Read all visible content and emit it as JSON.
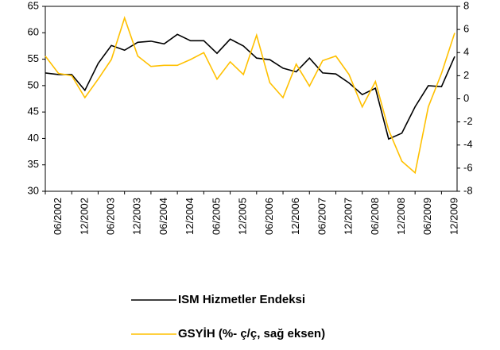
{
  "chart_data": {
    "type": "line",
    "categories": [
      null,
      "06/2002",
      null,
      "12/2002",
      null,
      "06/2003",
      null,
      "12/2003",
      null,
      "06/2004",
      null,
      "12/2004",
      null,
      "06/2005",
      null,
      "12/2005",
      null,
      "06/2006",
      null,
      "12/2006",
      null,
      "06/2007",
      null,
      "12/2007",
      null,
      "06/2008",
      null,
      "12/2008",
      null,
      "06/2009",
      null,
      "12/2009"
    ],
    "series": [
      {
        "name": "ISM Hizmetler Endeksi",
        "color": "#000000",
        "values": [
          52.4,
          52.1,
          52.1,
          49.1,
          54.2,
          57.6,
          56.7,
          58.2,
          58.4,
          57.9,
          59.7,
          58.5,
          58.5,
          56.1,
          58.8,
          57.5,
          55.2,
          54.9,
          53.3,
          52.6,
          55.2,
          52.4,
          52.2,
          50.5,
          48.3,
          49.5,
          39.9,
          41.0,
          46.0,
          50.0,
          49.8,
          55.5
        ]
      },
      {
        "name": "GSYİH (%- ç/ç, sağ eksen)",
        "color": "#FFC000",
        "axis": "y2",
        "values": [
          3.7,
          2.2,
          2.0,
          0.1,
          1.7,
          3.4,
          7.0,
          3.7,
          2.8,
          2.9,
          2.9,
          3.4,
          4.0,
          1.7,
          3.2,
          2.1,
          5.5,
          1.4,
          0.1,
          3.0,
          1.1,
          3.3,
          3.7,
          2.1,
          -0.7,
          1.5,
          -2.7,
          -5.4,
          -6.4,
          -0.7,
          2.2,
          5.7
        ]
      }
    ],
    "ylim": [
      30,
      65
    ],
    "yticks": [
      30,
      35,
      40,
      45,
      50,
      55,
      60,
      65
    ],
    "y2lim": [
      -8,
      8
    ],
    "y2ticks": [
      -8,
      -6,
      -4,
      -2,
      0,
      2,
      4,
      6,
      8
    ]
  }
}
